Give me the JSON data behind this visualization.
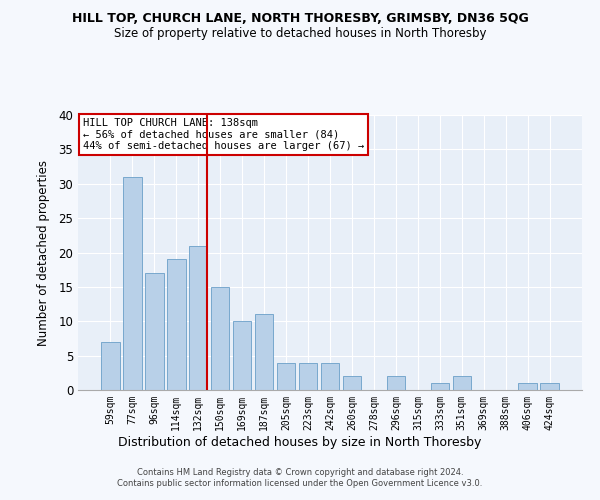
{
  "title1": "HILL TOP, CHURCH LANE, NORTH THORESBY, GRIMSBY, DN36 5QG",
  "title2": "Size of property relative to detached houses in North Thoresby",
  "xlabel": "Distribution of detached houses by size in North Thoresby",
  "ylabel": "Number of detached properties",
  "categories": [
    "59sqm",
    "77sqm",
    "96sqm",
    "114sqm",
    "132sqm",
    "150sqm",
    "169sqm",
    "187sqm",
    "205sqm",
    "223sqm",
    "242sqm",
    "260sqm",
    "278sqm",
    "296sqm",
    "315sqm",
    "333sqm",
    "351sqm",
    "369sqm",
    "388sqm",
    "406sqm",
    "424sqm"
  ],
  "values": [
    7,
    31,
    17,
    19,
    21,
    15,
    10,
    11,
    4,
    4,
    4,
    2,
    0,
    2,
    0,
    1,
    2,
    0,
    0,
    1,
    1
  ],
  "bar_color": "#b8d0e8",
  "bar_edgecolor": "#6a9fc8",
  "annotation_box_text": "HILL TOP CHURCH LANE: 138sqm\n← 56% of detached houses are smaller (84)\n44% of semi-detached houses are larger (67) →",
  "annotation_box_color": "#ffffff",
  "annotation_box_edgecolor": "#cc0000",
  "red_line_index": 4,
  "ylim": [
    0,
    40
  ],
  "yticks": [
    0,
    5,
    10,
    15,
    20,
    25,
    30,
    35,
    40
  ],
  "fig_background_color": "#f5f8fd",
  "plot_background_color": "#e8eff8",
  "grid_color": "#ffffff",
  "footer": "Contains HM Land Registry data © Crown copyright and database right 2024.\nContains public sector information licensed under the Open Government Licence v3.0."
}
